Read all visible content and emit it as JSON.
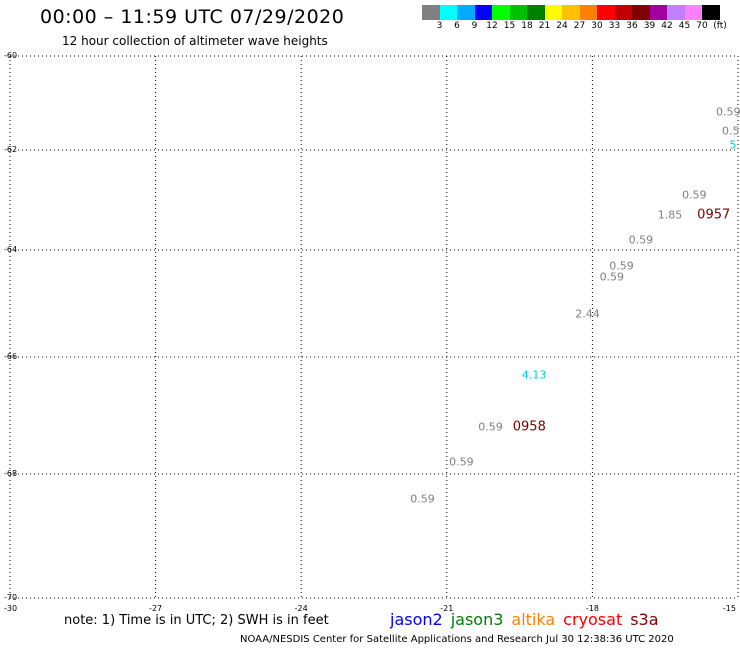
{
  "header": {
    "title": "00:00 – 11:59 UTC 07/29/2020",
    "subtitle": "12 hour collection of altimeter wave heights"
  },
  "colorbar": {
    "unit_label": "(ft)",
    "swatches": [
      "#808080",
      "#00ffff",
      "#00aaff",
      "#0000ff",
      "#00ff00",
      "#00c000",
      "#008000",
      "#ffff00",
      "#ffc000",
      "#ff8000",
      "#ff0000",
      "#c00000",
      "#800000",
      "#a000a0",
      "#c080ff",
      "#ff80ff",
      "#000000"
    ],
    "ticks": [
      "3",
      "6",
      "9",
      "12",
      "15",
      "18",
      "21",
      "24",
      "27",
      "30",
      "33",
      "36",
      "39",
      "42",
      "45",
      "70"
    ]
  },
  "map": {
    "lat_labels": [
      "-60",
      "-62",
      "-64",
      "-66",
      "-68",
      "-70"
    ],
    "lon_labels": [
      "-30",
      "-27",
      "-24",
      "-21",
      "-18",
      "-15"
    ],
    "observations": [
      {
        "value": "0.59",
        "lon": -15.2,
        "lat": -61.2,
        "color": "#808080"
      },
      {
        "value": "0.5",
        "lon": -15.15,
        "lat": -61.6,
        "color": "#808080"
      },
      {
        "value": "5",
        "lon": -15.05,
        "lat": -61.9,
        "color": "#00cccc"
      },
      {
        "value": "0.59",
        "lon": -15.9,
        "lat": -62.9,
        "color": "#808080"
      },
      {
        "value": "1.85",
        "lon": -16.4,
        "lat": -63.3,
        "color": "#808080"
      },
      {
        "value": "0.59",
        "lon": -17.0,
        "lat": -63.8,
        "color": "#808080"
      },
      {
        "value": "0.59",
        "lon": -17.4,
        "lat": -64.3,
        "color": "#808080"
      },
      {
        "value": "0.59",
        "lon": -17.6,
        "lat": -64.5,
        "color": "#808080"
      },
      {
        "value": "2.44",
        "lon": -18.1,
        "lat": -65.2,
        "color": "#808080"
      },
      {
        "value": "4.13",
        "lon": -19.2,
        "lat": -66.3,
        "color": "#00cccc"
      },
      {
        "value": "0.59",
        "lon": -20.1,
        "lat": -67.2,
        "color": "#808080"
      },
      {
        "value": "0.59",
        "lon": -20.7,
        "lat": -67.8,
        "color": "#808080"
      },
      {
        "value": "0.59",
        "lon": -21.5,
        "lat": -68.4,
        "color": "#808080"
      }
    ],
    "track_labels": [
      {
        "value": "0957",
        "lon": -15.5,
        "lat": -63.3,
        "color": "#800000"
      },
      {
        "value": "0958",
        "lon": -19.3,
        "lat": -67.2,
        "color": "#800000"
      }
    ]
  },
  "note": "note: 1) Time is in UTC; 2) SWH is in feet",
  "legend": {
    "items": [
      {
        "label": "jason2",
        "color": "#0000ff"
      },
      {
        "label": "jason3",
        "color": "#008000"
      },
      {
        "label": "altika",
        "color": "#ff8000"
      },
      {
        "label": "cryosat",
        "color": "#ff0000"
      },
      {
        "label": "s3a",
        "color": "#800000"
      }
    ]
  },
  "footer": "NOAA/NESDIS Center for Satellite Applications and Research    Jul 30 12:38:36 UTC 2020"
}
